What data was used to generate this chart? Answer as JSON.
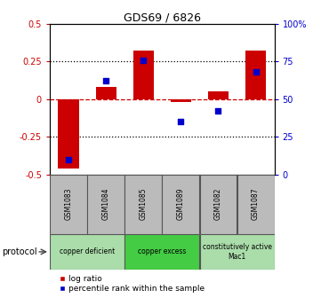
{
  "title": "GDS69 / 6826",
  "samples": [
    "GSM1083",
    "GSM1084",
    "GSM1085",
    "GSM1089",
    "GSM1082",
    "GSM1087"
  ],
  "log_ratios": [
    -0.46,
    0.08,
    0.32,
    -0.02,
    0.05,
    0.32
  ],
  "percentiles": [
    10,
    62,
    76,
    35,
    42,
    68
  ],
  "ylim_left": [
    -0.5,
    0.5
  ],
  "ylim_right": [
    0,
    100
  ],
  "yticks_left": [
    -0.5,
    -0.25,
    0,
    0.25,
    0.5
  ],
  "ytick_labels_left": [
    "-0.5",
    "-0.25",
    "0",
    "0.25",
    "0.5"
  ],
  "yticks_right": [
    0,
    25,
    50,
    75,
    100
  ],
  "ytick_labels_right": [
    "0",
    "25",
    "50",
    "75",
    "100%"
  ],
  "bar_color": "#cc0000",
  "dot_color": "#0000cc",
  "zero_line_color": "#cc0000",
  "grid_color": "black",
  "protocols": [
    {
      "label": "copper deficient",
      "samples": [
        0,
        1
      ],
      "color": "#aaddaa"
    },
    {
      "label": "copper excess",
      "samples": [
        2,
        3
      ],
      "color": "#44cc44"
    },
    {
      "label": "constitutively active\nMac1",
      "samples": [
        4,
        5
      ],
      "color": "#aaddaa"
    }
  ],
  "protocol_label": "protocol",
  "legend_log_ratio": "log ratio",
  "legend_percentile": "percentile rank within the sample",
  "bg_color": "#ffffff",
  "sample_box_color": "#bbbbbb",
  "bar_width": 0.55,
  "dot_size": 25
}
